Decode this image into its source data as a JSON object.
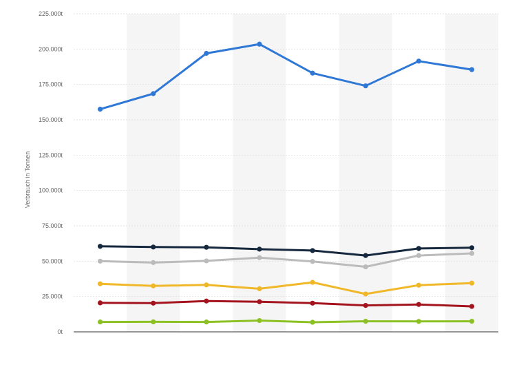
{
  "chart_data": {
    "type": "line",
    "title": "",
    "xlabel": "",
    "ylabel": "Verbrauch in Tonnen",
    "ylim": [
      0,
      225000
    ],
    "y_ticks": [
      {
        "value": 0,
        "label": "0t"
      },
      {
        "value": 25000,
        "label": "25.000t"
      },
      {
        "value": 50000,
        "label": "50.000t"
      },
      {
        "value": 75000,
        "label": "75.000t"
      },
      {
        "value": 100000,
        "label": "100.000t"
      },
      {
        "value": 125000,
        "label": "125.000t"
      },
      {
        "value": 150000,
        "label": "150.000t"
      },
      {
        "value": 175000,
        "label": "175.000t"
      },
      {
        "value": 200000,
        "label": "200.000t"
      },
      {
        "value": 225000,
        "label": "225.000t"
      }
    ],
    "categories": [
      "",
      "",
      "",
      "",
      "",
      "",
      "",
      ""
    ],
    "grid": true,
    "legend": "none",
    "series": [
      {
        "color": "#2f78d6",
        "values": [
          157500,
          168500,
          197000,
          203500,
          183000,
          174000,
          191500,
          185500
        ]
      },
      {
        "color": "#16283d",
        "values": [
          60500,
          60000,
          59800,
          58500,
          57500,
          54000,
          59000,
          59500
        ]
      },
      {
        "color": "#bbbbbb",
        "values": [
          50000,
          49000,
          50200,
          52500,
          49800,
          46000,
          54000,
          55500
        ]
      },
      {
        "color": "#f0b829",
        "values": [
          34000,
          32500,
          33200,
          30500,
          35000,
          26800,
          33000,
          34500
        ]
      },
      {
        "color": "#a3141e",
        "values": [
          20500,
          20300,
          21800,
          21300,
          20300,
          18700,
          19400,
          18000
        ]
      },
      {
        "color": "#8cc125",
        "values": [
          7000,
          7100,
          7000,
          8000,
          6800,
          7500,
          7400,
          7500
        ]
      }
    ]
  }
}
